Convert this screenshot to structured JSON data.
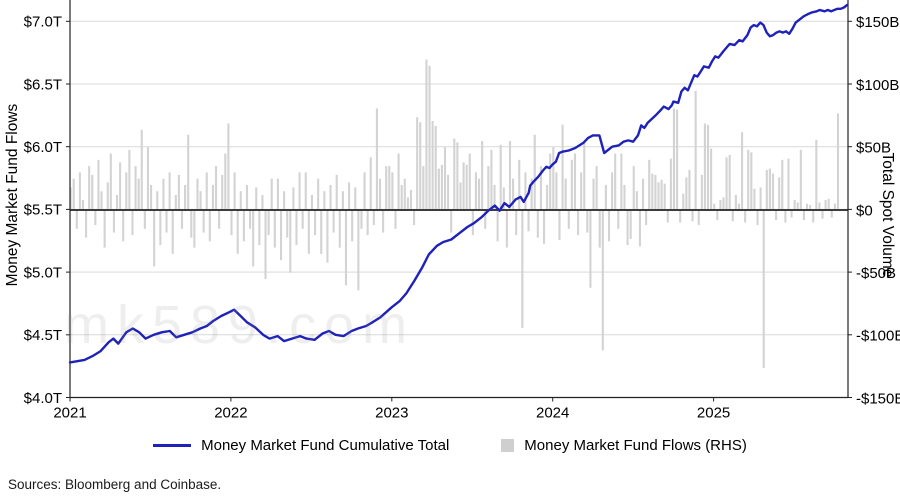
{
  "chart": {
    "left_axis": {
      "label": "Money Market Fund Flows",
      "ticks": [
        "$7.0T",
        "$6.5T",
        "$6.0T",
        "$5.5T",
        "$5.0T",
        "$4.5T",
        "$4.0T"
      ]
    },
    "right_axis": {
      "label": "Total Spot Volume",
      "ticks": [
        "$150B",
        "$100B",
        "$50B",
        "$0",
        "-$50B",
        "-$100B",
        "-$150B"
      ]
    },
    "x_axis": {
      "ticks": [
        "2021",
        "2022",
        "2023",
        "2024",
        "2025"
      ]
    },
    "legend": [
      {
        "label": "Money Market Fund Cumulative Total",
        "type": "line",
        "color": "#1e22b8"
      },
      {
        "label": "Money Market Fund Flows (RHS)",
        "type": "square",
        "color": "#cfcfcf"
      }
    ],
    "source_note": "Sources: Bloomberg and Coinbase.",
    "watermark": "mk589.com"
  },
  "chart_data": {
    "type": "mixed",
    "title": "",
    "x_range": [
      2021.0,
      2025.85
    ],
    "x_ticks": [
      2021,
      2022,
      2023,
      2024,
      2025
    ],
    "left_axis": {
      "label": "Money Market Fund Flows",
      "unit": "$T",
      "ticks": [
        7.0,
        6.5,
        6.0,
        5.5,
        5.0,
        4.5,
        4.0
      ],
      "range": [
        4.0,
        7.18
      ]
    },
    "right_axis": {
      "label": "Total Spot Volume",
      "unit": "$B",
      "ticks": [
        150,
        100,
        50,
        0,
        -50,
        -100,
        -150
      ],
      "range": [
        -150,
        159
      ]
    },
    "grid": true,
    "legend_position": "bottom",
    "series": [
      {
        "name": "Money Market Fund Cumulative Total",
        "type": "line",
        "axis": "left",
        "unit": "$T",
        "color": "#1e22b8",
        "points": [
          [
            2021.0,
            4.28
          ],
          [
            2021.05,
            4.29
          ],
          [
            2021.09,
            4.3
          ],
          [
            2021.14,
            4.33
          ],
          [
            2021.19,
            4.37
          ],
          [
            2021.24,
            4.44
          ],
          [
            2021.27,
            4.47
          ],
          [
            2021.3,
            4.43
          ],
          [
            2021.35,
            4.52
          ],
          [
            2021.39,
            4.55
          ],
          [
            2021.43,
            4.52
          ],
          [
            2021.47,
            4.47
          ],
          [
            2021.52,
            4.5
          ],
          [
            2021.57,
            4.52
          ],
          [
            2021.62,
            4.53
          ],
          [
            2021.66,
            4.48
          ],
          [
            2021.71,
            4.5
          ],
          [
            2021.76,
            4.52
          ],
          [
            2021.81,
            4.55
          ],
          [
            2021.85,
            4.57
          ],
          [
            2021.89,
            4.61
          ],
          [
            2021.94,
            4.65
          ],
          [
            2021.99,
            4.68
          ],
          [
            2022.02,
            4.7
          ],
          [
            2022.06,
            4.65
          ],
          [
            2022.1,
            4.6
          ],
          [
            2022.15,
            4.56
          ],
          [
            2022.2,
            4.5
          ],
          [
            2022.24,
            4.47
          ],
          [
            2022.29,
            4.49
          ],
          [
            2022.33,
            4.45
          ],
          [
            2022.38,
            4.47
          ],
          [
            2022.43,
            4.49
          ],
          [
            2022.47,
            4.47
          ],
          [
            2022.52,
            4.46
          ],
          [
            2022.57,
            4.51
          ],
          [
            2022.61,
            4.53
          ],
          [
            2022.65,
            4.5
          ],
          [
            2022.7,
            4.49
          ],
          [
            2022.75,
            4.53
          ],
          [
            2022.79,
            4.55
          ],
          [
            2022.84,
            4.57
          ],
          [
            2022.88,
            4.6
          ],
          [
            2022.93,
            4.64
          ],
          [
            2023.0,
            4.72
          ],
          [
            2023.05,
            4.77
          ],
          [
            2023.09,
            4.83
          ],
          [
            2023.14,
            4.93
          ],
          [
            2023.19,
            5.04
          ],
          [
            2023.23,
            5.14
          ],
          [
            2023.28,
            5.21
          ],
          [
            2023.32,
            5.24
          ],
          [
            2023.37,
            5.26
          ],
          [
            2023.42,
            5.31
          ],
          [
            2023.47,
            5.36
          ],
          [
            2023.51,
            5.39
          ],
          [
            2023.56,
            5.44
          ],
          [
            2023.6,
            5.49
          ],
          [
            2023.64,
            5.53
          ],
          [
            2023.67,
            5.49
          ],
          [
            2023.7,
            5.55
          ],
          [
            2023.73,
            5.52
          ],
          [
            2023.77,
            5.58
          ],
          [
            2023.8,
            5.6
          ],
          [
            2023.82,
            5.56
          ],
          [
            2023.85,
            5.63
          ],
          [
            2023.86,
            5.69
          ],
          [
            2023.88,
            5.72
          ],
          [
            2023.91,
            5.76
          ],
          [
            2023.94,
            5.81
          ],
          [
            2023.96,
            5.84
          ],
          [
            2023.98,
            5.83
          ],
          [
            2024.0,
            5.86
          ],
          [
            2024.02,
            5.88
          ],
          [
            2024.04,
            5.95
          ],
          [
            2024.06,
            5.96
          ],
          [
            2024.1,
            5.97
          ],
          [
            2024.14,
            5.99
          ],
          [
            2024.19,
            6.03
          ],
          [
            2024.22,
            6.07
          ],
          [
            2024.25,
            6.09
          ],
          [
            2024.29,
            6.09
          ],
          [
            2024.32,
            5.95
          ],
          [
            2024.34,
            5.97
          ],
          [
            2024.37,
            6.0
          ],
          [
            2024.41,
            6.01
          ],
          [
            2024.44,
            6.04
          ],
          [
            2024.47,
            6.05
          ],
          [
            2024.5,
            6.04
          ],
          [
            2024.53,
            6.09
          ],
          [
            2024.55,
            6.17
          ],
          [
            2024.57,
            6.15
          ],
          [
            2024.59,
            6.19
          ],
          [
            2024.64,
            6.25
          ],
          [
            2024.67,
            6.29
          ],
          [
            2024.69,
            6.32
          ],
          [
            2024.72,
            6.3
          ],
          [
            2024.74,
            6.33
          ],
          [
            2024.75,
            6.36
          ],
          [
            2024.78,
            6.35
          ],
          [
            2024.8,
            6.44
          ],
          [
            2024.82,
            6.47
          ],
          [
            2024.84,
            6.45
          ],
          [
            2024.86,
            6.51
          ],
          [
            2024.88,
            6.57
          ],
          [
            2024.9,
            6.56
          ],
          [
            2024.92,
            6.6
          ],
          [
            2024.94,
            6.64
          ],
          [
            2024.97,
            6.63
          ],
          [
            2024.99,
            6.68
          ],
          [
            2025.01,
            6.72
          ],
          [
            2025.03,
            6.71
          ],
          [
            2025.06,
            6.76
          ],
          [
            2025.08,
            6.79
          ],
          [
            2025.1,
            6.82
          ],
          [
            2025.13,
            6.81
          ],
          [
            2025.16,
            6.85
          ],
          [
            2025.18,
            6.84
          ],
          [
            2025.21,
            6.89
          ],
          [
            2025.23,
            6.95
          ],
          [
            2025.25,
            6.97
          ],
          [
            2025.27,
            6.96
          ],
          [
            2025.29,
            6.99
          ],
          [
            2025.31,
            6.97
          ],
          [
            2025.33,
            6.91
          ],
          [
            2025.35,
            6.88
          ],
          [
            2025.37,
            6.89
          ],
          [
            2025.39,
            6.91
          ],
          [
            2025.41,
            6.92
          ],
          [
            2025.43,
            6.91
          ],
          [
            2025.45,
            6.92
          ],
          [
            2025.47,
            6.9
          ],
          [
            2025.49,
            6.94
          ],
          [
            2025.51,
            6.99
          ],
          [
            2025.54,
            7.02
          ],
          [
            2025.56,
            7.04
          ],
          [
            2025.59,
            7.06
          ],
          [
            2025.61,
            7.07
          ],
          [
            2025.64,
            7.08
          ],
          [
            2025.66,
            7.09
          ],
          [
            2025.69,
            7.08
          ],
          [
            2025.71,
            7.09
          ],
          [
            2025.73,
            7.08
          ],
          [
            2025.75,
            7.09
          ],
          [
            2025.77,
            7.1
          ],
          [
            2025.79,
            7.1
          ],
          [
            2025.81,
            7.11
          ],
          [
            2025.83,
            7.13
          ]
        ]
      },
      {
        "name": "Money Market Fund Flows (RHS)",
        "type": "bar",
        "axis": "right",
        "unit": "$B",
        "color": "#d3d3d3",
        "x_start": 2021.0,
        "x_step": 0.019231,
        "values": [
          18,
          25,
          -15,
          30,
          8,
          -22,
          35,
          28,
          -12,
          40,
          15,
          -30,
          22,
          45,
          -18,
          12,
          38,
          -25,
          30,
          48,
          -20,
          35,
          25,
          64,
          -15,
          50,
          20,
          -45,
          15,
          -28,
          25,
          -18,
          30,
          -35,
          12,
          28,
          -15,
          20,
          60,
          -22,
          -30,
          25,
          15,
          -18,
          30,
          -25,
          20,
          35,
          -15,
          28,
          45,
          69,
          -20,
          30,
          -35,
          15,
          -25,
          20,
          -15,
          -45,
          18,
          -28,
          12,
          -55,
          -20,
          25,
          -30,
          25,
          -40,
          15,
          -22,
          -50,
          18,
          -28,
          30,
          -15,
          30,
          -35,
          12,
          -20,
          25,
          -35,
          15,
          -42,
          20,
          -18,
          28,
          -30,
          15,
          -60,
          22,
          -25,
          18,
          -64,
          -15,
          30,
          -20,
          42,
          -12,
          81,
          25,
          -18,
          35,
          35,
          30,
          -15,
          45,
          20,
          25,
          10,
          16,
          -12,
          74,
          70,
          35,
          120,
          115,
          71,
          67,
          33,
          36,
          50,
          28,
          -18,
          57,
          54,
          22,
          38,
          36,
          45,
          -20,
          30,
          25,
          55,
          -15,
          35,
          48,
          20,
          -25,
          52,
          18,
          -30,
          55,
          25,
          -20,
          40,
          -94,
          30,
          -17,
          25,
          60,
          -22,
          35,
          -27,
          20,
          45,
          50,
          30,
          -24,
          68,
          25,
          -15,
          40,
          45,
          -20,
          30,
          55,
          -18,
          -62,
          25,
          35,
          -30,
          -112,
          20,
          -25,
          30,
          45,
          -15,
          45,
          20,
          -28,
          -23,
          35,
          15,
          -29,
          25,
          -12,
          40,
          29,
          28,
          22,
          24,
          21,
          -10,
          41,
          81,
          80,
          -10,
          13,
          26,
          32,
          -9,
          95,
          -12,
          28,
          69,
          68,
          49,
          5,
          -8,
          8,
          10,
          42,
          44,
          -9,
          12,
          5,
          62,
          -10,
          48,
          46,
          17,
          -12,
          18,
          -126,
          32,
          33,
          29,
          -8,
          26,
          40,
          -10,
          41,
          -6,
          8,
          6,
          48,
          -8,
          5,
          4,
          -10,
          56,
          6,
          -7,
          8,
          9,
          -6,
          5,
          77
        ]
      }
    ]
  }
}
